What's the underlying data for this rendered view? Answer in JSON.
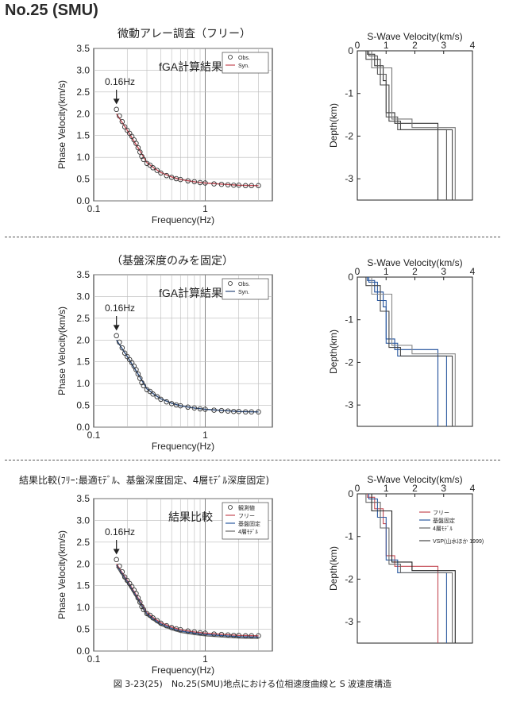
{
  "header": {
    "title": "No.25 (SMU)"
  },
  "sections": [
    {
      "title": "微動アレー調査（フリー）",
      "phase": {
        "inner_title": "fGA計算結果",
        "legend": [
          {
            "label": "Obs.",
            "marker": "circle"
          },
          {
            "label": "Syn.",
            "marker": "line",
            "color": "#c44b55"
          }
        ],
        "arrow_label": "0.16Hz"
      },
      "swave": {
        "title": "S-Wave Velocity(km/s)"
      }
    },
    {
      "title": "（基盤深度のみを固定）",
      "phase": {
        "inner_title": "fGA計算結果",
        "legend": [
          {
            "label": "Obs.",
            "marker": "circle"
          },
          {
            "label": "Syn.",
            "marker": "line",
            "color": "#2c4a7a"
          }
        ],
        "arrow_label": "0.16Hz"
      },
      "swave": {
        "title": "S-Wave Velocity(km/s)"
      }
    },
    {
      "title": "結果比較(ﾌﾘｰ:最適ﾓﾃﾞﾙ、基盤深度固定、4層ﾓﾃﾞﾙ深度固定)",
      "phase": {
        "inner_title": "結果比較",
        "legend": [
          {
            "label": "観測値",
            "marker": "circle"
          },
          {
            "label": "フリー",
            "marker": "line",
            "color": "#c44b55"
          },
          {
            "label": "基盤固定",
            "marker": "line",
            "color": "#2c5aa0"
          },
          {
            "label": "4層ﾓﾃﾞﾙ",
            "marker": "line",
            "color": "#666666"
          }
        ],
        "arrow_label": "0.16Hz"
      },
      "swave": {
        "title": "S-Wave Velocity(km/s)",
        "legend": [
          {
            "label": "フリー",
            "color": "#c44b55"
          },
          {
            "label": "基盤固定",
            "color": "#2c5aa0"
          },
          {
            "label": "4層ﾓﾃﾞﾙ",
            "color": "#666666"
          },
          {
            "label": "VSP(山水ほか 1999)",
            "color": "#444444"
          }
        ]
      }
    }
  ],
  "caption": "図 3-23(25)　No.25(SMU)地点における位相速度曲線と S 波速度構造",
  "chart_data": [
    {
      "type": "scatter",
      "id": "phase-velocity",
      "xlabel": "Frequency(Hz)",
      "ylabel": "Phase Velocity(km/s)",
      "xscale": "log",
      "xlim": [
        0.1,
        4
      ],
      "ylim": [
        0,
        3.5
      ],
      "xticks": [
        0.1,
        1
      ],
      "xtick_labels": [
        "0.1",
        "1"
      ],
      "yticks": [
        0,
        0.5,
        1,
        1.5,
        2,
        2.5,
        3,
        3.5
      ],
      "ytick_labels": [
        "0.0",
        "0.5",
        "1.0",
        "1.5",
        "2.0",
        "2.5",
        "3.0",
        "3.5"
      ],
      "grid": true,
      "series": [
        {
          "name": "Obs.",
          "x": [
            0.16,
            0.17,
            0.18,
            0.19,
            0.2,
            0.21,
            0.22,
            0.23,
            0.24,
            0.25,
            0.26,
            0.27,
            0.28,
            0.3,
            0.32,
            0.34,
            0.37,
            0.4,
            0.45,
            0.5,
            0.55,
            0.6,
            0.7,
            0.8,
            0.9,
            1.0,
            1.2,
            1.4,
            1.6,
            1.8,
            2.0,
            2.3,
            2.6,
            3.0
          ],
          "y": [
            2.1,
            1.95,
            1.82,
            1.7,
            1.62,
            1.55,
            1.48,
            1.4,
            1.32,
            1.22,
            1.12,
            1.02,
            0.95,
            0.86,
            0.82,
            0.76,
            0.7,
            0.64,
            0.58,
            0.54,
            0.51,
            0.49,
            0.46,
            0.44,
            0.42,
            0.41,
            0.39,
            0.38,
            0.37,
            0.36,
            0.36,
            0.35,
            0.35,
            0.35
          ]
        },
        {
          "name": "Syn.",
          "x": [
            0.16,
            0.2,
            0.25,
            0.3,
            0.35,
            0.4,
            0.5,
            0.6,
            0.8,
            1.0,
            1.5,
            2.0,
            3.0
          ],
          "y": [
            2.0,
            1.62,
            1.22,
            0.88,
            0.75,
            0.65,
            0.55,
            0.49,
            0.44,
            0.41,
            0.38,
            0.36,
            0.35
          ]
        }
      ]
    },
    {
      "type": "line",
      "id": "s-wave-velocity",
      "title": "S-Wave Velocity(km/s)",
      "ylabel": "Depth(km)",
      "xlim": [
        0,
        4
      ],
      "ylim": [
        -3.5,
        0
      ],
      "xticks": [
        0,
        1,
        2,
        3,
        4
      ],
      "yticks": [
        0,
        -1,
        -2,
        -3
      ],
      "step_profiles": [
        {
          "vs": [
            0.35,
            0.6,
            0.9,
            1.0,
            1.3,
            2.8
          ],
          "depth": [
            0,
            0.08,
            0.35,
            0.7,
            1.45,
            1.7
          ]
        },
        {
          "vs": [
            0.4,
            0.7,
            1.0,
            1.4,
            3.1
          ],
          "depth": [
            0,
            0.12,
            0.55,
            1.55,
            1.85
          ]
        },
        {
          "vs": [
            0.3,
            0.8,
            1.1,
            1.5,
            3.3
          ],
          "depth": [
            0,
            0.2,
            0.8,
            1.65,
            1.85
          ]
        },
        {
          "vs": [
            0.5,
            1.2,
            1.9,
            3.4
          ],
          "depth": [
            0,
            0.4,
            1.6,
            1.8
          ]
        }
      ]
    }
  ]
}
